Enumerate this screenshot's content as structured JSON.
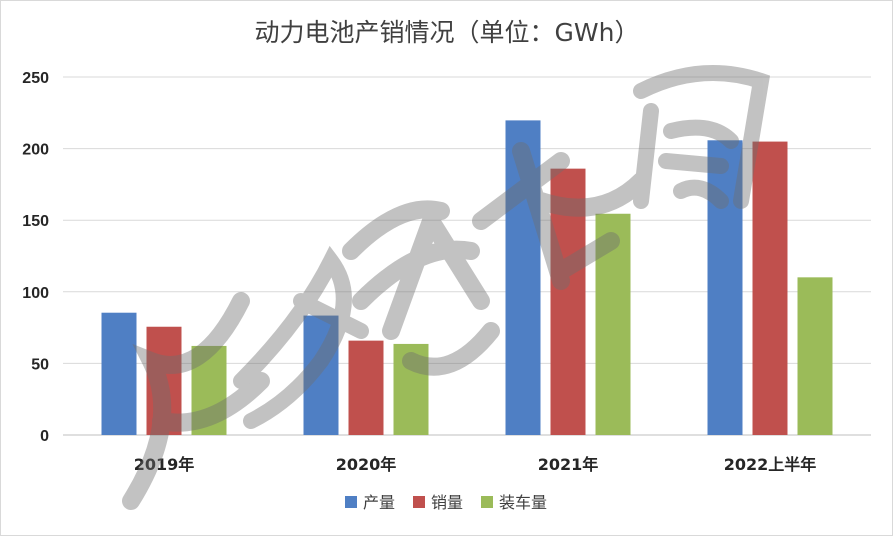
{
  "chart_data": {
    "type": "bar",
    "title": "动力电池产销情况（单位：GWh）",
    "xlabel": "",
    "ylabel": "",
    "categories": [
      "2019年",
      "2020年",
      "2021年",
      "2022上半年"
    ],
    "series": [
      {
        "name": "产量",
        "color": "#4f7fc4",
        "values": [
          85.4,
          83.4,
          219.7,
          205.8
        ]
      },
      {
        "name": "销量",
        "color": "#c0504d",
        "values": [
          75.6,
          65.9,
          186.0,
          204.9
        ]
      },
      {
        "name": "装车量",
        "color": "#9bbb59",
        "values": [
          62.2,
          63.6,
          154.5,
          110.1
        ]
      }
    ],
    "ylim": [
      0,
      250
    ],
    "yticks": [
      0,
      50,
      100,
      150,
      200,
      250
    ],
    "grid": true,
    "legend_position": "bottom"
  },
  "watermark": {
    "text": "财经资本局"
  }
}
